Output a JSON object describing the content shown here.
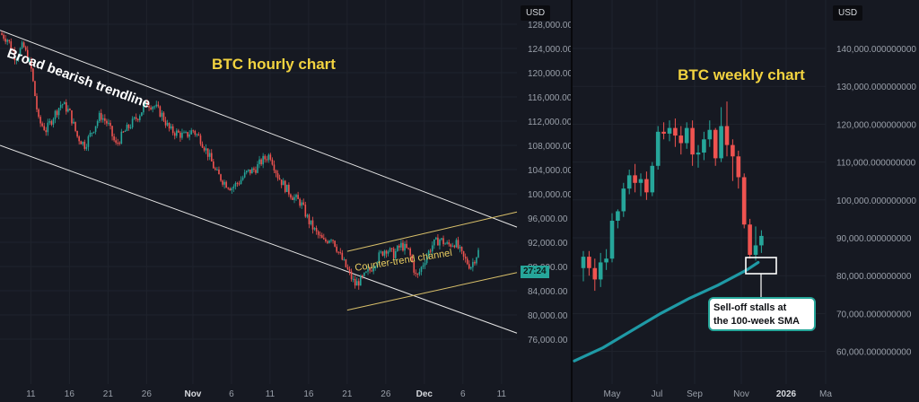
{
  "currency_label": "USD",
  "last_price_label": "27:24",
  "chart_data": [
    {
      "type": "candlestick",
      "title": "BTC hourly chart",
      "ylim": [
        74000,
        132000
      ],
      "y_ticks": [
        "128,000.00",
        "124,000.00",
        "120,000.00",
        "116,000.00",
        "112,000.00",
        "108,000.00",
        "104,000.00",
        "100,000.00",
        "96,000.00",
        "92,000.00",
        "88,000.00",
        "84,000.00",
        "80,000.00",
        "76,000.00"
      ],
      "y_tick_values": [
        128000,
        124000,
        120000,
        116000,
        112000,
        108000,
        104000,
        100000,
        96000,
        92000,
        88000,
        84000,
        80000,
        76000
      ],
      "x_ticks": [
        "11",
        "16",
        "21",
        "26",
        "Nov",
        "6",
        "11",
        "16",
        "21",
        "26",
        "Dec",
        "6",
        "11"
      ],
      "x_tick_days": [
        11,
        16,
        21,
        26,
        32,
        37,
        42,
        47,
        52,
        57,
        62,
        67,
        72
      ],
      "bold_x_ticks": [
        "Nov",
        "Dec"
      ],
      "day_range": [
        7,
        74
      ],
      "price_path": [
        [
          7,
          126500
        ],
        [
          8,
          125500
        ],
        [
          9,
          122500
        ],
        [
          10,
          124500
        ],
        [
          11,
          121000
        ],
        [
          12,
          112000
        ],
        [
          13,
          110500
        ],
        [
          14,
          113000
        ],
        [
          15,
          115000
        ],
        [
          16,
          113500
        ],
        [
          17,
          109500
        ],
        [
          18,
          108000
        ],
        [
          19,
          110500
        ],
        [
          20,
          113000
        ],
        [
          21,
          111500
        ],
        [
          22,
          108000
        ],
        [
          23,
          110000
        ],
        [
          24,
          111500
        ],
        [
          25,
          113000
        ],
        [
          26,
          115000
        ],
        [
          27,
          114500
        ],
        [
          28,
          113000
        ],
        [
          29,
          110500
        ],
        [
          30,
          110000
        ],
        [
          31,
          109500
        ],
        [
          32,
          110500
        ],
        [
          33,
          109000
        ],
        [
          34,
          106500
        ],
        [
          35,
          103500
        ],
        [
          36,
          102000
        ],
        [
          37,
          101000
        ],
        [
          38,
          102000
        ],
        [
          39,
          103500
        ],
        [
          40,
          104000
        ],
        [
          41,
          105500
        ],
        [
          42,
          106500
        ],
        [
          43,
          103000
        ],
        [
          44,
          101000
        ],
        [
          45,
          99500
        ],
        [
          46,
          98500
        ],
        [
          47,
          95500
        ],
        [
          48,
          93500
        ],
        [
          49,
          92000
        ],
        [
          50,
          93000
        ],
        [
          51,
          90000
        ],
        [
          52,
          87500
        ],
        [
          53,
          85000
        ],
        [
          54,
          86000
        ],
        [
          55,
          87500
        ],
        [
          56,
          89500
        ],
        [
          57,
          91000
        ],
        [
          58,
          90000
        ],
        [
          59,
          91500
        ],
        [
          60,
          90500
        ],
        [
          61,
          86000
        ],
        [
          62,
          89000
        ],
        [
          63,
          91500
        ],
        [
          64,
          92500
        ],
        [
          65,
          91500
        ],
        [
          66,
          92000
        ],
        [
          67,
          89500
        ],
        [
          68,
          88000
        ],
        [
          69,
          90500
        ]
      ],
      "annotations": {
        "trendline": "Broad bearish trendline",
        "counter_channel": "Counter-trend channel"
      }
    },
    {
      "type": "candlestick",
      "title": "BTC weekly chart",
      "ylim": [
        55000,
        148000
      ],
      "y_ticks": [
        "140,000.000000000",
        "130,000.000000000",
        "120,000.000000000",
        "110,000.000000000",
        "100,000.000000000",
        "90,000.000000000",
        "80,000.000000000",
        "70,000.000000000",
        "60,000.000000000"
      ],
      "y_tick_values": [
        140000,
        130000,
        120000,
        110000,
        100000,
        90000,
        80000,
        70000,
        60000
      ],
      "x_ticks": [
        "May",
        "Jul",
        "Sep",
        "Nov",
        "2026",
        "Ma"
      ],
      "bold_x_ticks": [
        "2026"
      ],
      "candles": [
        [
          82000,
          85000,
          78500,
          86500
        ],
        [
          85000,
          82000,
          80000,
          86500
        ],
        [
          82000,
          79000,
          76000,
          84500
        ],
        [
          79000,
          83500,
          77000,
          86000
        ],
        [
          83500,
          84500,
          81500,
          87000
        ],
        [
          84500,
          94500,
          83500,
          96500
        ],
        [
          94500,
          97000,
          92500,
          97500
        ],
        [
          97000,
          103000,
          95500,
          104500
        ],
        [
          103000,
          106500,
          101500,
          108000
        ],
        [
          106500,
          104500,
          102000,
          109500
        ],
        [
          104500,
          105500,
          101000,
          107000
        ],
        [
          105500,
          102000,
          100000,
          107500
        ],
        [
          102000,
          109000,
          101000,
          110000
        ],
        [
          109000,
          118000,
          108000,
          119500
        ],
        [
          118000,
          117500,
          116000,
          120500
        ],
        [
          117500,
          119000,
          115500,
          121000
        ],
        [
          119000,
          117000,
          114000,
          121500
        ],
        [
          117000,
          115000,
          112000,
          119500
        ],
        [
          115000,
          119000,
          113500,
          120500
        ],
        [
          119000,
          112000,
          109000,
          121000
        ],
        [
          112000,
          112500,
          108500,
          114500
        ],
        [
          112500,
          116000,
          110500,
          118000
        ],
        [
          116000,
          118500,
          114000,
          121000
        ],
        [
          118500,
          111000,
          109000,
          119000
        ],
        [
          111000,
          119500,
          110000,
          124500
        ],
        [
          119500,
          114500,
          111500,
          126000
        ],
        [
          114500,
          111500,
          105000,
          116000
        ],
        [
          111500,
          106000,
          103000,
          113000
        ],
        [
          106000,
          93500,
          92500,
          107000
        ],
        [
          93500,
          85500,
          84500,
          95000
        ],
        [
          85500,
          88000,
          84000,
          93000
        ],
        [
          88000,
          90500,
          86000,
          92000
        ]
      ],
      "sma100": [
        [
          0,
          57500
        ],
        [
          5,
          61000
        ],
        [
          10,
          65500
        ],
        [
          15,
          70000
        ],
        [
          20,
          74000
        ],
        [
          25,
          77500
        ],
        [
          30,
          81500
        ],
        [
          32,
          83500
        ]
      ],
      "annotations": {
        "callout": "Sell-off stalls at the 100-week SMA"
      }
    }
  ],
  "callout_lines": [
    "Sell-off stalls at",
    "the 100-week SMA"
  ],
  "colors": {
    "up": "#26a69a",
    "down": "#ef5350",
    "sma": "#1f9aa6",
    "title": "#f2d340",
    "channel": "#d9c06a",
    "trend": "#e6e6e6"
  }
}
